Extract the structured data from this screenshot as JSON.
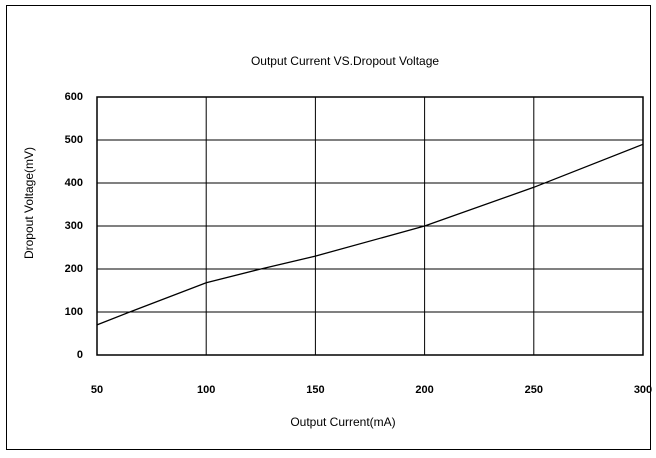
{
  "chart_data": {
    "type": "line",
    "title": "Output Current VS.Dropout Voltage",
    "x_label": "Output Current(mA)",
    "y_label": "Dropout Voltage(mV)",
    "series": [
      {
        "name": "Dropout Voltage",
        "color": "#000000",
        "x": [
          50,
          65,
          100,
          125,
          150,
          200,
          250,
          300
        ],
        "values": [
          70,
          100,
          168,
          200,
          230,
          300,
          390,
          490
        ]
      }
    ],
    "xlim": [
      50,
      300
    ],
    "xticks": [
      50,
      100,
      150,
      200,
      250,
      300
    ],
    "ylim": [
      0,
      600
    ],
    "yticks": [
      0,
      100,
      200,
      300,
      400,
      500,
      600
    ],
    "grid": true
  }
}
